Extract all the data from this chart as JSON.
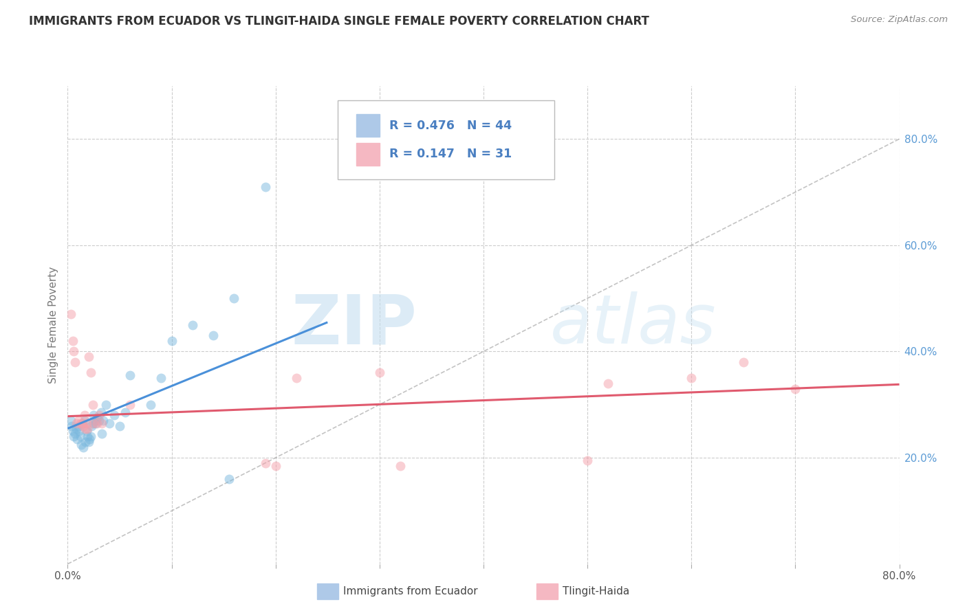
{
  "title": "IMMIGRANTS FROM ECUADOR VS TLINGIT-HAIDA SINGLE FEMALE POVERTY CORRELATION CHART",
  "source": "Source: ZipAtlas.com",
  "ylabel": "Single Female Poverty",
  "legend_label1": "Immigrants from Ecuador",
  "legend_label2": "Tlingit-Haida",
  "R1": "0.476",
  "N1": "44",
  "R2": "0.147",
  "N2": "31",
  "xlim": [
    0.0,
    0.8
  ],
  "ylim": [
    0.0,
    0.9
  ],
  "yticks": [
    0.2,
    0.4,
    0.6,
    0.8
  ],
  "ytick_labels": [
    "20.0%",
    "40.0%",
    "60.0%",
    "80.0%"
  ],
  "watermark_zip": "ZIP",
  "watermark_atlas": "atlas",
  "blue_color": "#7ab8de",
  "pink_color": "#f5a0aa",
  "blue_scatter": [
    [
      0.003,
      0.27
    ],
    [
      0.004,
      0.26
    ],
    [
      0.005,
      0.25
    ],
    [
      0.006,
      0.24
    ],
    [
      0.007,
      0.245
    ],
    [
      0.008,
      0.255
    ],
    [
      0.009,
      0.235
    ],
    [
      0.01,
      0.26
    ],
    [
      0.011,
      0.25
    ],
    [
      0.012,
      0.24
    ],
    [
      0.013,
      0.225
    ],
    [
      0.014,
      0.265
    ],
    [
      0.015,
      0.22
    ],
    [
      0.016,
      0.27
    ],
    [
      0.017,
      0.23
    ],
    [
      0.018,
      0.25
    ],
    [
      0.019,
      0.24
    ],
    [
      0.02,
      0.23
    ],
    [
      0.021,
      0.235
    ],
    [
      0.022,
      0.24
    ],
    [
      0.023,
      0.26
    ],
    [
      0.024,
      0.265
    ],
    [
      0.025,
      0.28
    ],
    [
      0.026,
      0.27
    ],
    [
      0.027,
      0.265
    ],
    [
      0.028,
      0.275
    ],
    [
      0.03,
      0.27
    ],
    [
      0.032,
      0.285
    ],
    [
      0.033,
      0.245
    ],
    [
      0.034,
      0.27
    ],
    [
      0.037,
      0.3
    ],
    [
      0.04,
      0.265
    ],
    [
      0.045,
      0.28
    ],
    [
      0.05,
      0.26
    ],
    [
      0.055,
      0.285
    ],
    [
      0.06,
      0.355
    ],
    [
      0.08,
      0.3
    ],
    [
      0.09,
      0.35
    ],
    [
      0.1,
      0.42
    ],
    [
      0.12,
      0.45
    ],
    [
      0.14,
      0.43
    ],
    [
      0.155,
      0.16
    ],
    [
      0.16,
      0.5
    ],
    [
      0.19,
      0.71
    ]
  ],
  "pink_scatter": [
    [
      0.003,
      0.47
    ],
    [
      0.005,
      0.42
    ],
    [
      0.006,
      0.4
    ],
    [
      0.007,
      0.38
    ],
    [
      0.008,
      0.265
    ],
    [
      0.01,
      0.27
    ],
    [
      0.012,
      0.265
    ],
    [
      0.014,
      0.265
    ],
    [
      0.015,
      0.26
    ],
    [
      0.016,
      0.28
    ],
    [
      0.017,
      0.255
    ],
    [
      0.018,
      0.265
    ],
    [
      0.019,
      0.255
    ],
    [
      0.02,
      0.39
    ],
    [
      0.022,
      0.36
    ],
    [
      0.024,
      0.3
    ],
    [
      0.025,
      0.265
    ],
    [
      0.028,
      0.265
    ],
    [
      0.03,
      0.28
    ],
    [
      0.033,
      0.265
    ],
    [
      0.06,
      0.3
    ],
    [
      0.19,
      0.19
    ],
    [
      0.2,
      0.185
    ],
    [
      0.22,
      0.35
    ],
    [
      0.3,
      0.36
    ],
    [
      0.32,
      0.185
    ],
    [
      0.5,
      0.195
    ],
    [
      0.52,
      0.34
    ],
    [
      0.6,
      0.35
    ],
    [
      0.65,
      0.38
    ],
    [
      0.7,
      0.33
    ]
  ],
  "blue_line_x": [
    0.0,
    0.25
  ],
  "blue_line_y": [
    0.255,
    0.455
  ],
  "pink_line_x": [
    0.0,
    0.8
  ],
  "pink_line_y": [
    0.278,
    0.338
  ],
  "dashed_line_x": [
    0.0,
    0.8
  ],
  "dashed_line_y": [
    0.0,
    0.8
  ]
}
